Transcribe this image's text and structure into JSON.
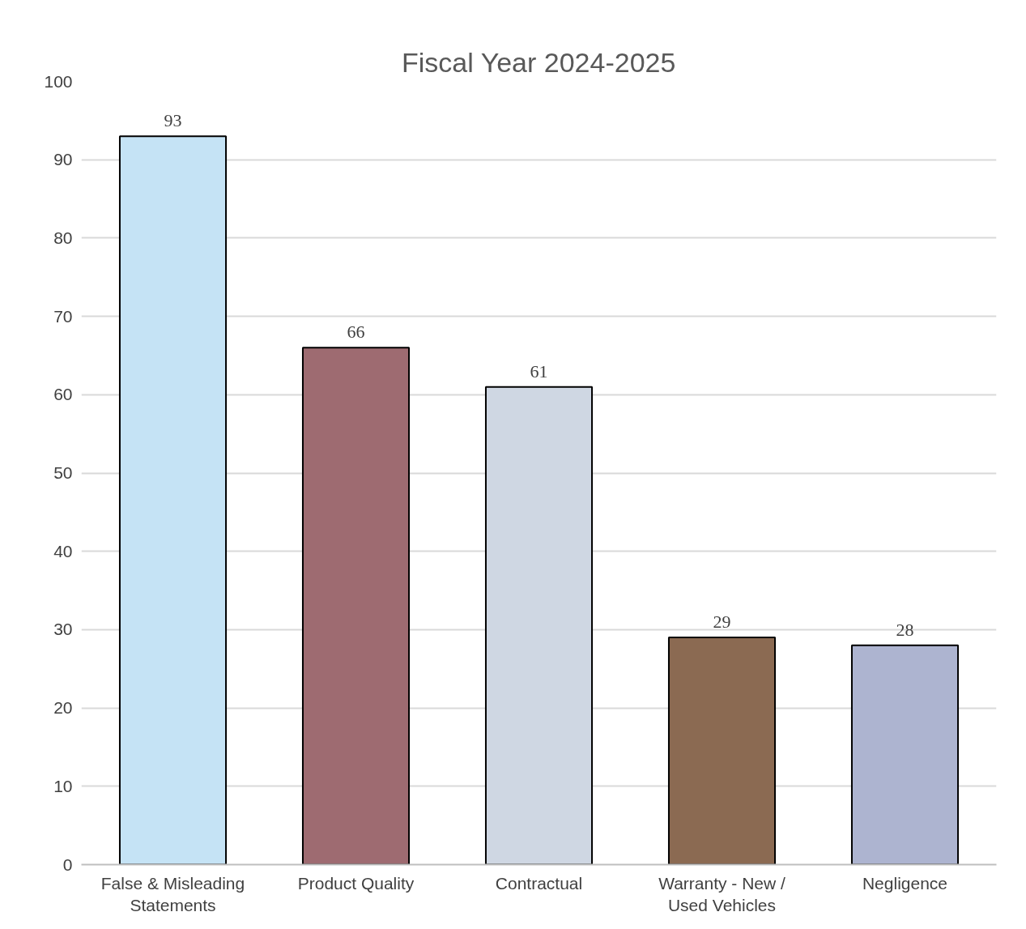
{
  "chart_data": {
    "type": "bar",
    "title": "Fiscal Year 2024-2025",
    "categories": [
      "False & Misleading Statements",
      "Product Quality",
      "Contractual",
      "Warranty - New / Used Vehicles",
      "Negligence"
    ],
    "values": [
      93,
      66,
      61,
      29,
      28
    ],
    "colors": [
      "#c5e3f5",
      "#9e6b71",
      "#cfd7e3",
      "#8b6a52",
      "#adb4d0"
    ],
    "ylim": [
      0,
      100
    ],
    "yticks": [
      0,
      10,
      20,
      30,
      40,
      50,
      60,
      70,
      80,
      90,
      100
    ],
    "grid": "y",
    "data_labels": true
  }
}
